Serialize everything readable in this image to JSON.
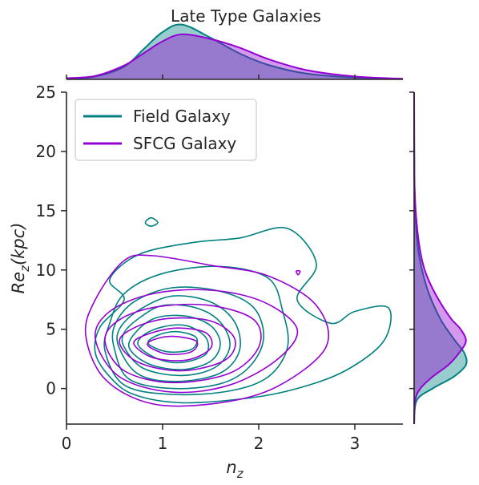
{
  "chart_data": {
    "type": "contour",
    "title": "Late Type Galaxies",
    "xlabel": "n_z",
    "ylabel": "Re_z(kpc)",
    "xlim": [
      0,
      3.5
    ],
    "ylim": [
      -3,
      25
    ],
    "xticks": [
      0,
      1,
      2,
      3
    ],
    "yticks": [
      0,
      5,
      10,
      15,
      20,
      25
    ],
    "legend": {
      "placement": "upper-left"
    },
    "grid": false,
    "series": [
      {
        "name": "Field Galaxy",
        "color": "#008080",
        "kde_center": [
          1.2,
          3.5
        ],
        "contour_levels": [
          [
            [
              0.3,
              3.0
            ],
            [
              0.45,
              1.0
            ],
            [
              0.7,
              -0.5
            ],
            [
              1.2,
              -1.2
            ],
            [
              1.9,
              -0.8
            ],
            [
              2.4,
              0.0
            ],
            [
              2.9,
              1.5
            ],
            [
              3.3,
              4.0
            ],
            [
              3.35,
              6.8
            ],
            [
              3.0,
              6.5
            ],
            [
              2.75,
              5.5
            ],
            [
              2.4,
              7.5
            ],
            [
              2.6,
              10.5
            ],
            [
              2.3,
              13.5
            ],
            [
              1.8,
              12.7
            ],
            [
              1.3,
              12.3
            ],
            [
              0.75,
              11.3
            ],
            [
              0.45,
              9.2
            ],
            [
              0.6,
              7.5
            ],
            [
              0.35,
              5.2
            ]
          ],
          [
            [
              0.4,
              3.2
            ],
            [
              0.6,
              0.3
            ],
            [
              1.1,
              -0.5
            ],
            [
              1.7,
              -0.2
            ],
            [
              2.1,
              1.0
            ],
            [
              2.3,
              3.5
            ],
            [
              2.25,
              6.5
            ],
            [
              2.1,
              9.3
            ],
            [
              1.6,
              10.3
            ],
            [
              1.0,
              9.7
            ],
            [
              0.6,
              8.0
            ],
            [
              0.45,
              5.5
            ]
          ],
          [
            [
              0.5,
              3.3
            ],
            [
              0.65,
              0.8
            ],
            [
              1.1,
              0.0
            ],
            [
              1.6,
              0.4
            ],
            [
              1.9,
              1.8
            ],
            [
              2.05,
              4.2
            ],
            [
              1.95,
              6.8
            ],
            [
              1.6,
              8.2
            ],
            [
              1.1,
              8.5
            ],
            [
              0.7,
              7.3
            ],
            [
              0.5,
              5.3
            ]
          ],
          [
            [
              0.55,
              3.4
            ],
            [
              0.75,
              1.2
            ],
            [
              1.15,
              0.6
            ],
            [
              1.6,
              1.3
            ],
            [
              1.8,
              3.2
            ],
            [
              1.75,
              5.6
            ],
            [
              1.5,
              7.3
            ],
            [
              1.1,
              7.8
            ],
            [
              0.75,
              6.6
            ],
            [
              0.55,
              5.0
            ]
          ],
          [
            [
              0.6,
              3.5
            ],
            [
              0.8,
              1.7
            ],
            [
              1.2,
              1.1
            ],
            [
              1.55,
              1.8
            ],
            [
              1.7,
              3.6
            ],
            [
              1.6,
              5.6
            ],
            [
              1.35,
              6.8
            ],
            [
              1.0,
              7.0
            ],
            [
              0.75,
              5.9
            ],
            [
              0.6,
              4.7
            ]
          ],
          [
            [
              0.65,
              3.5
            ],
            [
              0.85,
              2.1
            ],
            [
              1.2,
              1.6
            ],
            [
              1.5,
              2.3
            ],
            [
              1.6,
              3.8
            ],
            [
              1.5,
              5.3
            ],
            [
              1.25,
              6.1
            ],
            [
              0.95,
              6.0
            ],
            [
              0.75,
              5.0
            ]
          ],
          [
            [
              0.75,
              3.6
            ],
            [
              0.95,
              2.5
            ],
            [
              1.2,
              2.2
            ],
            [
              1.45,
              2.9
            ],
            [
              1.45,
              4.3
            ],
            [
              1.25,
              5.3
            ],
            [
              1.0,
              5.2
            ],
            [
              0.8,
              4.5
            ]
          ],
          [
            [
              0.85,
              3.8
            ],
            [
              1.05,
              3.1
            ],
            [
              1.3,
              3.3
            ],
            [
              1.35,
              4.3
            ],
            [
              1.15,
              4.8
            ],
            [
              0.95,
              4.5
            ]
          ]
        ],
        "outlier_contours": [
          [
            [
              0.82,
              14.0
            ],
            [
              0.88,
              13.7
            ],
            [
              0.95,
              14.0
            ],
            [
              0.88,
              14.4
            ]
          ]
        ],
        "marginal_x": {
          "x": [
            0.0,
            0.3,
            0.6,
            0.8,
            1.0,
            1.2,
            1.5,
            1.8,
            2.1,
            2.5,
            3.0,
            3.5
          ],
          "density": [
            0.01,
            0.05,
            0.22,
            0.52,
            0.82,
            0.95,
            0.72,
            0.45,
            0.25,
            0.1,
            0.03,
            0.01
          ]
        },
        "marginal_y": {
          "y": [
            -3,
            -1,
            0,
            1,
            2,
            3,
            4,
            5,
            6,
            8,
            10,
            12,
            15,
            18,
            25
          ],
          "density": [
            0.0,
            0.05,
            0.35,
            0.75,
            0.98,
            0.95,
            0.78,
            0.62,
            0.48,
            0.28,
            0.15,
            0.07,
            0.02,
            0.005,
            0.0
          ]
        }
      },
      {
        "name": "SFCG Galaxy",
        "color": "#9400D3",
        "kde_center": [
          1.3,
          3.8
        ],
        "contour_levels": [
          [
            [
              0.2,
              4.5
            ],
            [
              0.4,
              0.8
            ],
            [
              0.9,
              -1.3
            ],
            [
              1.6,
              -1.2
            ],
            [
              2.2,
              0.2
            ],
            [
              2.7,
              3.5
            ],
            [
              2.6,
              7.0
            ],
            [
              2.1,
              9.5
            ],
            [
              1.5,
              10.4
            ],
            [
              0.9,
              11.2
            ],
            [
              0.6,
              10.8
            ],
            [
              0.3,
              7.5
            ]
          ],
          [
            [
              0.3,
              4.2
            ],
            [
              0.55,
              1.0
            ],
            [
              1.1,
              -0.3
            ],
            [
              1.7,
              0.3
            ],
            [
              2.2,
              2.5
            ],
            [
              2.4,
              5.0
            ],
            [
              2.05,
              7.3
            ],
            [
              1.5,
              8.3
            ],
            [
              0.9,
              8.0
            ],
            [
              0.45,
              6.5
            ]
          ],
          [
            [
              0.4,
              4.0
            ],
            [
              0.6,
              1.5
            ],
            [
              1.1,
              0.5
            ],
            [
              1.7,
              1.3
            ],
            [
              2.0,
              3.5
            ],
            [
              1.95,
              5.8
            ],
            [
              1.5,
              7.0
            ],
            [
              0.95,
              6.9
            ],
            [
              0.55,
              5.8
            ]
          ],
          [
            [
              0.55,
              3.9
            ],
            [
              0.75,
              2.2
            ],
            [
              1.2,
              1.5
            ],
            [
              1.65,
              2.4
            ],
            [
              1.75,
              4.2
            ],
            [
              1.5,
              5.7
            ],
            [
              1.05,
              5.9
            ],
            [
              0.7,
              5.1
            ]
          ],
          [
            [
              0.7,
              3.8
            ],
            [
              0.9,
              2.6
            ],
            [
              1.25,
              2.4
            ],
            [
              1.5,
              3.4
            ],
            [
              1.45,
              4.7
            ],
            [
              1.15,
              5.1
            ],
            [
              0.85,
              4.6
            ]
          ],
          [
            [
              0.85,
              3.6
            ],
            [
              1.05,
              2.9
            ],
            [
              1.3,
              3.1
            ],
            [
              1.35,
              4.0
            ],
            [
              1.1,
              4.4
            ],
            [
              0.9,
              4.1
            ]
          ]
        ],
        "outlier_contours": [
          [
            [
              2.39,
              9.9
            ],
            [
              2.41,
              9.6
            ],
            [
              2.43,
              9.9
            ]
          ]
        ],
        "marginal_x": {
          "x": [
            0.0,
            0.3,
            0.6,
            0.8,
            1.0,
            1.2,
            1.5,
            1.8,
            2.1,
            2.5,
            3.0,
            3.5
          ],
          "density": [
            0.02,
            0.06,
            0.24,
            0.45,
            0.66,
            0.78,
            0.7,
            0.55,
            0.35,
            0.16,
            0.05,
            0.01
          ]
        },
        "marginal_y": {
          "y": [
            -3,
            -1,
            0,
            1,
            2,
            3,
            4,
            5,
            6,
            8,
            10,
            12,
            15,
            18,
            25
          ],
          "density": [
            0.0,
            0.02,
            0.12,
            0.35,
            0.65,
            0.85,
            0.98,
            0.88,
            0.68,
            0.4,
            0.2,
            0.1,
            0.03,
            0.005,
            0.0
          ]
        }
      }
    ]
  }
}
